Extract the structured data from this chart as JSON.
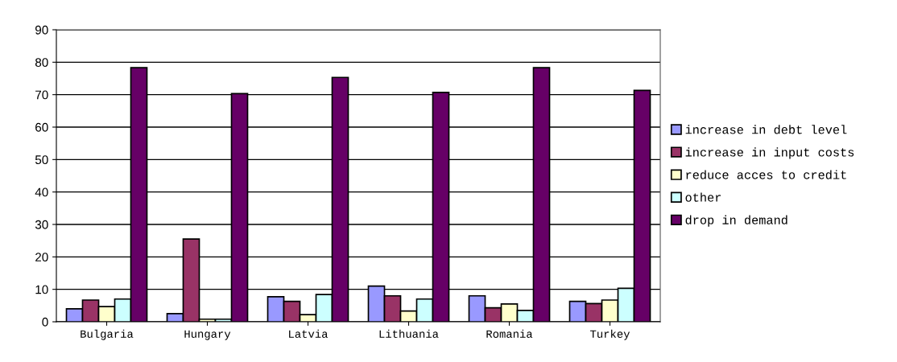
{
  "chart_data": {
    "type": "bar",
    "categories": [
      "Bulgaria",
      "Hungary",
      "Latvia",
      "Lithuania",
      "Romania",
      "Turkey"
    ],
    "series": [
      {
        "name": "increase in debt level",
        "color": "#9999ff",
        "values": [
          4,
          2.5,
          7.7,
          11,
          8,
          6.3
        ]
      },
      {
        "name": "increase in input costs",
        "color": "#993366",
        "values": [
          6.7,
          25.5,
          6.3,
          8,
          4.3,
          5.6
        ]
      },
      {
        "name": "reduce acces to credit",
        "color": "#ffffcc",
        "values": [
          4.7,
          0.8,
          2.2,
          3.3,
          5.5,
          6.7
        ]
      },
      {
        "name": "other",
        "color": "#ccffff",
        "values": [
          7,
          0.8,
          8.4,
          7,
          3.5,
          10.3
        ]
      },
      {
        "name": "drop in demand",
        "color": "#660066",
        "values": [
          78.3,
          70.3,
          75.3,
          70.7,
          78.3,
          71.3
        ]
      }
    ],
    "ylim": [
      0,
      90
    ],
    "yticks": [
      0,
      10,
      20,
      30,
      40,
      50,
      60,
      70,
      80,
      90
    ],
    "grid": "y",
    "legend": "right"
  }
}
